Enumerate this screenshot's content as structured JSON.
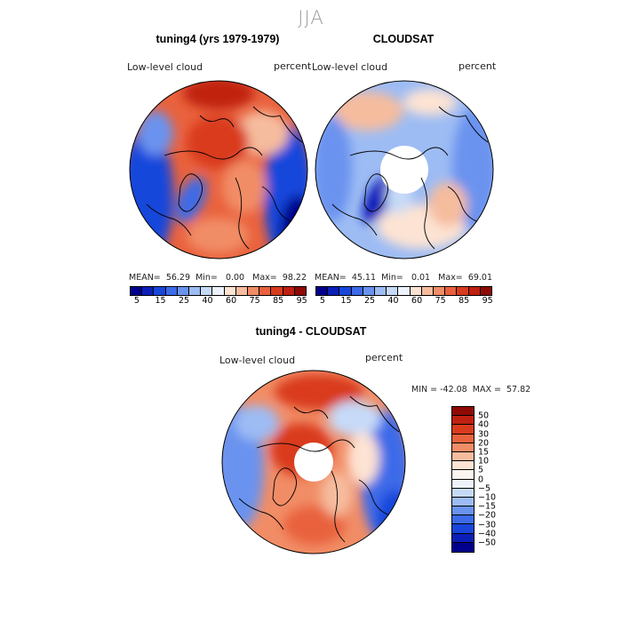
{
  "season": "JJA",
  "panels": {
    "model": {
      "title": "tuning4 (yrs 1979-1979)",
      "variable": "Low-level cloud",
      "units": "percent",
      "stats": {
        "mean_label": "MEAN=",
        "mean": "56.29",
        "min_label": "Min=",
        "min": "0.00",
        "max_label": "Max=",
        "max": "98.22"
      }
    },
    "obs": {
      "title": "CLOUDSAT",
      "variable": "Low-level cloud",
      "units": "percent",
      "stats": {
        "mean_label": "MEAN=",
        "mean": "45.11",
        "min_label": "Min=",
        "min": "0.01",
        "max_label": "Max=",
        "max": "69.01"
      }
    },
    "diff": {
      "title": "tuning4 - CLOUDSAT",
      "variable": "Low-level cloud",
      "units": "percent",
      "minmax": "MIN = -42.08  MAX =  57.82"
    }
  },
  "colorbar_abs": {
    "ticks": [
      "5",
      "15",
      "25",
      "40",
      "60",
      "75",
      "85",
      "95"
    ],
    "colors": [
      "#00008c",
      "#0b1fb8",
      "#1846db",
      "#3c6ae8",
      "#6a93ef",
      "#9dbcf4",
      "#c6daf8",
      "#eef3fb",
      "#fde3d3",
      "#f6bc9e",
      "#f18d66",
      "#e9623d",
      "#d93b1d",
      "#c02010",
      "#8f0a04"
    ]
  },
  "colorbar_diff": {
    "ticks": [
      "50",
      "40",
      "30",
      "20",
      "15",
      "10",
      "5",
      "0",
      "−5",
      "−10",
      "−15",
      "−20",
      "−30",
      "−40",
      "−50"
    ],
    "colors": [
      "#8f0a04",
      "#c02010",
      "#d93b1d",
      "#e9623d",
      "#f18d66",
      "#f6bc9e",
      "#fde3d3",
      "#fbf4ef",
      "#eef3fb",
      "#c6daf8",
      "#9dbcf4",
      "#6a93ef",
      "#3c6ae8",
      "#1846db",
      "#0b1fb8",
      "#00008c"
    ]
  }
}
